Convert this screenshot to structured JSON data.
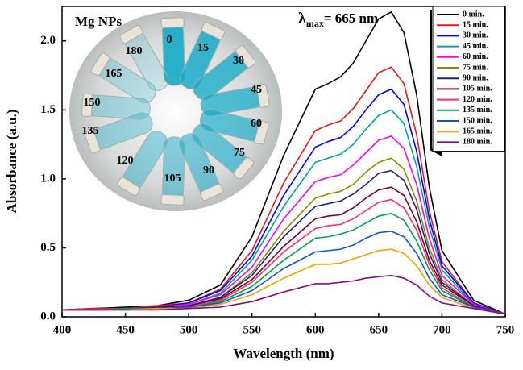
{
  "chart_data": {
    "type": "line",
    "x_label": "Wavelength (nm)",
    "y_label": "Absorbance (a.u.)",
    "annotation": {
      "symbol": "λ",
      "subscript": "max",
      "text": "= 665 nm"
    },
    "x": [
      400,
      425,
      450,
      475,
      500,
      525,
      550,
      575,
      600,
      610,
      620,
      630,
      640,
      650,
      660,
      670,
      680,
      690,
      700,
      725,
      750
    ],
    "xlim": [
      400,
      750
    ],
    "xticks": [
      400,
      450,
      500,
      550,
      600,
      650,
      700,
      750
    ],
    "ylim": [
      0,
      2.25
    ],
    "yticks": [
      {
        "value": 0,
        "label": "0.0"
      },
      0.5,
      {
        "value": 1,
        "label": "1.0"
      },
      1.5,
      {
        "value": 2,
        "label": "2.0"
      }
    ],
    "series": [
      {
        "name": "0 min.",
        "color": "#000000",
        "values": [
          0.05,
          0.06,
          0.07,
          0.08,
          0.12,
          0.23,
          0.58,
          1.17,
          1.65,
          1.69,
          1.74,
          1.84,
          2.0,
          2.16,
          2.21,
          2.06,
          1.61,
          0.94,
          0.48,
          0.12,
          0.02
        ]
      },
      {
        "name": "15 min.",
        "color": "#e4191c",
        "values": [
          0.05,
          0.06,
          0.06,
          0.08,
          0.1,
          0.2,
          0.48,
          0.97,
          1.35,
          1.39,
          1.42,
          1.51,
          1.64,
          1.77,
          1.81,
          1.69,
          1.32,
          0.77,
          0.4,
          0.1,
          0.02
        ]
      },
      {
        "name": "30 min.",
        "color": "#0000ff",
        "values": [
          0.05,
          0.05,
          0.06,
          0.07,
          0.1,
          0.19,
          0.44,
          0.88,
          1.23,
          1.27,
          1.3,
          1.38,
          1.5,
          1.61,
          1.65,
          1.54,
          1.2,
          0.71,
          0.37,
          0.1,
          0.02
        ]
      },
      {
        "name": "45 min.",
        "color": "#00a3a3",
        "values": [
          0.05,
          0.05,
          0.06,
          0.07,
          0.09,
          0.17,
          0.41,
          0.8,
          1.12,
          1.15,
          1.18,
          1.25,
          1.36,
          1.46,
          1.5,
          1.4,
          1.09,
          0.65,
          0.34,
          0.09,
          0.02
        ]
      },
      {
        "name": "60 min.",
        "color": "#ff00ff",
        "values": [
          0.05,
          0.05,
          0.06,
          0.07,
          0.09,
          0.16,
          0.36,
          0.71,
          0.98,
          1.01,
          1.03,
          1.1,
          1.19,
          1.28,
          1.31,
          1.22,
          0.96,
          0.57,
          0.3,
          0.09,
          0.02
        ]
      },
      {
        "name": "75 min.",
        "color": "#8c8c00",
        "values": [
          0.05,
          0.05,
          0.06,
          0.07,
          0.08,
          0.14,
          0.32,
          0.62,
          0.86,
          0.89,
          0.91,
          0.96,
          1.05,
          1.12,
          1.15,
          1.07,
          0.84,
          0.5,
          0.27,
          0.08,
          0.02
        ]
      },
      {
        "name": "90 min.",
        "color": "#20208c",
        "values": [
          0.05,
          0.05,
          0.06,
          0.07,
          0.08,
          0.14,
          0.3,
          0.58,
          0.8,
          0.82,
          0.84,
          0.89,
          0.96,
          1.04,
          1.06,
          0.99,
          0.78,
          0.46,
          0.25,
          0.08,
          0.02
        ]
      },
      {
        "name": "105 min.",
        "color": "#7a0026",
        "values": [
          0.05,
          0.05,
          0.06,
          0.06,
          0.08,
          0.13,
          0.27,
          0.51,
          0.71,
          0.73,
          0.74,
          0.79,
          0.86,
          0.92,
          0.94,
          0.88,
          0.69,
          0.41,
          0.23,
          0.08,
          0.02
        ]
      },
      {
        "name": "120 min.",
        "color": "#ff2d6e",
        "values": [
          0.05,
          0.05,
          0.06,
          0.06,
          0.07,
          0.12,
          0.25,
          0.47,
          0.64,
          0.66,
          0.67,
          0.71,
          0.77,
          0.83,
          0.85,
          0.79,
          0.63,
          0.38,
          0.21,
          0.07,
          0.02
        ]
      },
      {
        "name": "135 min.",
        "color": "#00a04c",
        "values": [
          0.05,
          0.05,
          0.06,
          0.06,
          0.07,
          0.11,
          0.22,
          0.41,
          0.57,
          0.58,
          0.6,
          0.63,
          0.68,
          0.73,
          0.75,
          0.7,
          0.55,
          0.34,
          0.19,
          0.07,
          0.02
        ]
      },
      {
        "name": "150 min.",
        "color": "#1652d0",
        "values": [
          0.05,
          0.05,
          0.05,
          0.06,
          0.07,
          0.1,
          0.19,
          0.35,
          0.47,
          0.48,
          0.49,
          0.52,
          0.57,
          0.61,
          0.62,
          0.58,
          0.46,
          0.28,
          0.16,
          0.07,
          0.02
        ]
      },
      {
        "name": "165 min.",
        "color": "#f0a000",
        "values": [
          0.05,
          0.05,
          0.05,
          0.06,
          0.06,
          0.09,
          0.16,
          0.28,
          0.38,
          0.38,
          0.39,
          0.42,
          0.45,
          0.48,
          0.49,
          0.46,
          0.37,
          0.23,
          0.14,
          0.06,
          0.02
        ]
      },
      {
        "name": "180 min.",
        "color": "#7f0f7f",
        "values": [
          0.05,
          0.05,
          0.05,
          0.05,
          0.06,
          0.07,
          0.11,
          0.18,
          0.24,
          0.24,
          0.25,
          0.26,
          0.28,
          0.29,
          0.3,
          0.28,
          0.23,
          0.15,
          0.1,
          0.06,
          0.02
        ]
      }
    ],
    "legend": "upper right"
  },
  "inset": {
    "title": "Mg NPs",
    "vial_labels": [
      "0",
      "15",
      "30",
      "45",
      "60",
      "75",
      "90",
      "105",
      "120",
      "135",
      "150",
      "165",
      "180"
    ]
  }
}
